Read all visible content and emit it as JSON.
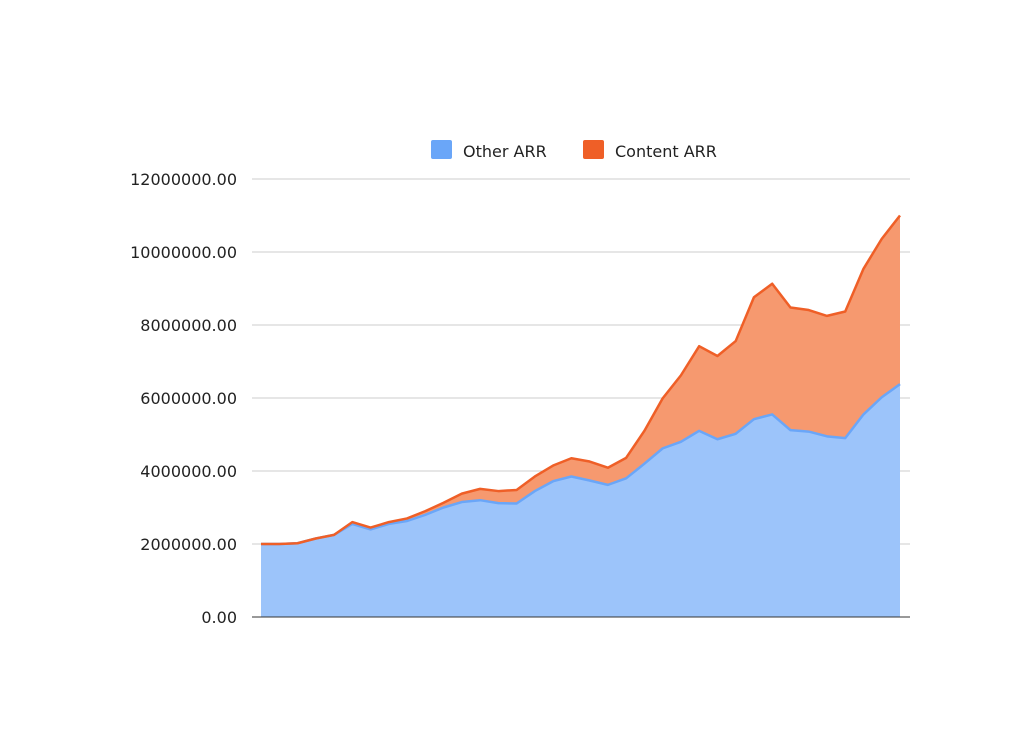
{
  "chart_data": {
    "type": "area",
    "stacked": true,
    "title": "",
    "xlabel": "",
    "ylabel": "",
    "ylim": [
      0,
      12000000
    ],
    "yticks": [
      "0.00",
      "2000000.00",
      "4000000.00",
      "6000000.00",
      "8000000.00",
      "10000000.00",
      "12000000.00"
    ],
    "grid": true,
    "legend_position": "top",
    "x_tick_labels_shown": false,
    "series": [
      {
        "name": "Other ARR",
        "color": "#6aa6f8",
        "fill": "#9cc4fa",
        "values": [
          2000000,
          2000000,
          2020000,
          2150000,
          2250000,
          2550000,
          2400000,
          2550000,
          2630000,
          2800000,
          3000000,
          3150000,
          3200000,
          3120000,
          3110000,
          3450000,
          3720000,
          3850000,
          3740000,
          3620000,
          3800000,
          4200000,
          4620000,
          4800000,
          5100000,
          4870000,
          5020000,
          5420000,
          5550000,
          5120000,
          5080000,
          4950000,
          4900000,
          5550000,
          6020000,
          6380000
        ]
      },
      {
        "name": "Content ARR",
        "color": "#ef5f27",
        "fill": "#f6996f",
        "values": [
          0,
          0,
          0,
          0,
          0,
          50000,
          50000,
          50000,
          70000,
          100000,
          130000,
          230000,
          310000,
          330000,
          370000,
          400000,
          430000,
          500000,
          520000,
          470000,
          560000,
          900000,
          1370000,
          1820000,
          2320000,
          2280000,
          2540000,
          3340000,
          3580000,
          3360000,
          3330000,
          3300000,
          3470000,
          3990000,
          4340000,
          4620000
        ]
      }
    ]
  }
}
